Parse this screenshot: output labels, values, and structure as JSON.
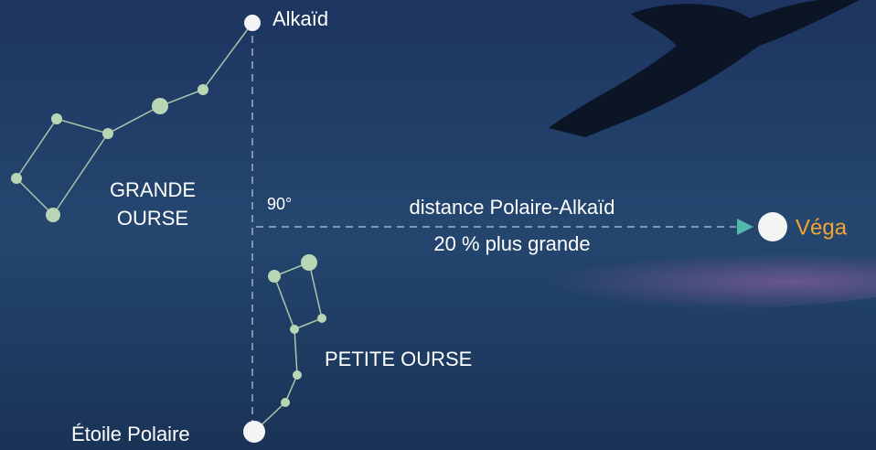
{
  "labels": {
    "alkaid": "Alkaïd",
    "grande_ourse": [
      "GRANDE",
      "OURSE"
    ],
    "angle": "90°",
    "distance": [
      "distance Polaire-Alkaïd",
      "20 % plus grande"
    ],
    "vega": "Véga",
    "petite_ourse": "PETITE OURSE",
    "polaire": "Étoile Polaire"
  }
}
